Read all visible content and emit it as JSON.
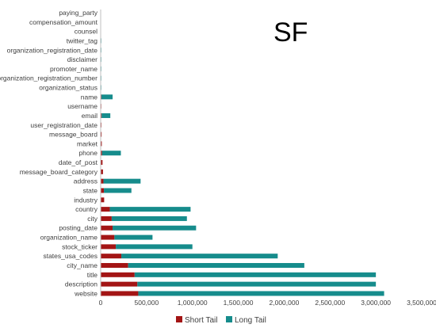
{
  "chart_data": {
    "type": "bar",
    "orientation": "horizontal",
    "stacked": true,
    "title": "SF",
    "xlabel": "",
    "ylabel": "",
    "xlim": [
      0,
      3500000
    ],
    "xticks": [
      0,
      500000,
      1000000,
      1500000,
      2000000,
      2500000,
      3000000,
      3500000
    ],
    "xtick_labels": [
      "0",
      "500,000",
      "1,000,000",
      "1,500,000",
      "2,000,000",
      "2,500,000",
      "3,000,000",
      "3,500,000"
    ],
    "grid": false,
    "legend_position": "bottom",
    "categories": [
      "paying_party",
      "compensation_amount",
      "counsel",
      "twitter_tag",
      "organization_registration_date",
      "disclaimer",
      "promoter_name",
      "organization_registration_number",
      "organization_status",
      "name",
      "username",
      "email",
      "user_registration_date",
      "message_board",
      "market",
      "phone",
      "date_of_post",
      "message_board_category",
      "address",
      "state",
      "industry",
      "country",
      "city",
      "posting_date",
      "organization_name",
      "stock_ticker",
      "states_usa_codes",
      "city_name",
      "title",
      "description",
      "website"
    ],
    "series": [
      {
        "name": "Short Tail",
        "color": "#a31515",
        "values": [
          0,
          0,
          0,
          0,
          0,
          0,
          0,
          0,
          0,
          8000,
          6000,
          10000,
          8000,
          10000,
          12000,
          15000,
          20000,
          25000,
          30000,
          35000,
          38000,
          100000,
          120000,
          130000,
          150000,
          165000,
          225000,
          300000,
          370000,
          400000,
          410000
        ]
      },
      {
        "name": "Long Tail",
        "color": "#168c8c",
        "values": [
          0,
          0,
          0,
          2000,
          2000,
          2000,
          2000,
          2000,
          2000,
          122000,
          0,
          95000,
          0,
          0,
          0,
          205000,
          0,
          0,
          405000,
          300000,
          0,
          880000,
          820000,
          910000,
          415000,
          835000,
          1705000,
          1920000,
          2630000,
          2600000,
          2680000
        ]
      }
    ]
  }
}
